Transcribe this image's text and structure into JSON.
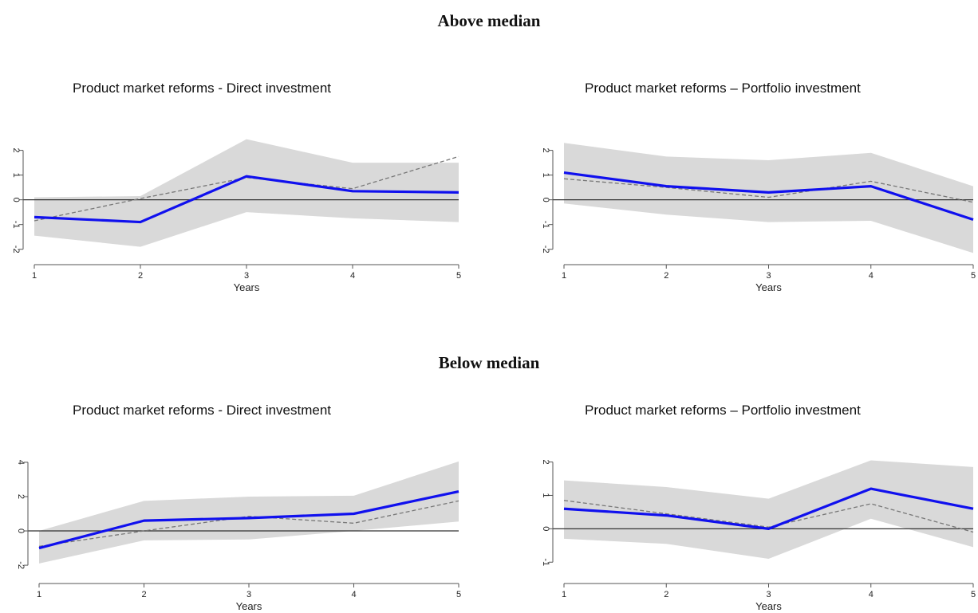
{
  "sections": [
    {
      "title": "Above median"
    },
    {
      "title": "Below median"
    }
  ],
  "colors": {
    "estimate": "#1010ee",
    "band": "#d9d9d9",
    "comparison": "#777777",
    "zero_line": "#333333",
    "axis": "#555555"
  },
  "chart_data": [
    {
      "type": "line",
      "title": "Product market reforms - Direct investment",
      "xlabel": "Years",
      "ylabel": "",
      "x": [
        1,
        2,
        3,
        4,
        5
      ],
      "xlim": [
        1,
        5
      ],
      "ylim": [
        -2.3,
        2.6
      ],
      "yticks": [
        -2,
        -1,
        0,
        1,
        2
      ],
      "grid": false,
      "series": [
        {
          "values": [
            -0.7,
            -0.9,
            0.95,
            0.35,
            0.3
          ],
          "style": "solid"
        },
        {
          "values": [
            -0.85,
            0.05,
            0.9,
            0.45,
            1.75
          ],
          "style": "dashed"
        },
        {
          "values": [
            0.1,
            0.15,
            2.45,
            1.5,
            1.5
          ],
          "style": "band-upper"
        },
        {
          "values": [
            -1.45,
            -1.9,
            -0.5,
            -0.75,
            -0.9
          ],
          "style": "band-lower"
        }
      ]
    },
    {
      "type": "line",
      "title": "Product market reforms – Portfolio investment",
      "xlabel": "Years",
      "ylabel": "",
      "x": [
        1,
        2,
        3,
        4,
        5
      ],
      "xlim": [
        1,
        5
      ],
      "ylim": [
        -2.3,
        2.6
      ],
      "yticks": [
        -2,
        -1,
        0,
        1,
        2
      ],
      "grid": false,
      "series": [
        {
          "values": [
            1.1,
            0.55,
            0.3,
            0.55,
            -0.8
          ],
          "style": "solid"
        },
        {
          "values": [
            0.85,
            0.5,
            0.1,
            0.75,
            -0.1
          ],
          "style": "dashed"
        },
        {
          "values": [
            2.3,
            1.75,
            1.6,
            1.9,
            0.55
          ],
          "style": "band-upper"
        },
        {
          "values": [
            -0.15,
            -0.6,
            -0.9,
            -0.85,
            -2.15
          ],
          "style": "band-lower"
        }
      ]
    },
    {
      "type": "line",
      "title": "Product market reforms - Direct investment",
      "xlabel": "Years",
      "ylabel": "",
      "x": [
        1,
        2,
        3,
        4,
        5
      ],
      "xlim": [
        1,
        5
      ],
      "ylim": [
        -2.6,
        4.6
      ],
      "yticks": [
        -2,
        0,
        2,
        4
      ],
      "grid": false,
      "series": [
        {
          "values": [
            -1.0,
            0.6,
            0.75,
            1.0,
            2.3
          ],
          "style": "solid"
        },
        {
          "values": [
            -0.9,
            0.0,
            0.85,
            0.45,
            1.75
          ],
          "style": "dashed"
        },
        {
          "values": [
            0.0,
            1.75,
            2.0,
            2.05,
            4.05
          ],
          "style": "band-upper"
        },
        {
          "values": [
            -1.9,
            -0.55,
            -0.5,
            0.0,
            0.55
          ],
          "style": "band-lower"
        }
      ]
    },
    {
      "type": "line",
      "title": "Product market reforms – Portfolio investment",
      "xlabel": "Years",
      "ylabel": "",
      "x": [
        1,
        2,
        3,
        4,
        5
      ],
      "xlim": [
        1,
        5
      ],
      "ylim": [
        -1.4,
        2.3
      ],
      "yticks": [
        -1,
        0,
        1,
        2
      ],
      "grid": false,
      "series": [
        {
          "values": [
            0.6,
            0.4,
            0.0,
            1.2,
            0.6
          ],
          "style": "solid"
        },
        {
          "values": [
            0.85,
            0.45,
            0.05,
            0.75,
            -0.1
          ],
          "style": "dashed"
        },
        {
          "values": [
            1.45,
            1.25,
            0.9,
            2.05,
            1.85
          ],
          "style": "band-upper"
        },
        {
          "values": [
            -0.3,
            -0.45,
            -0.9,
            0.3,
            -0.55
          ],
          "style": "band-lower"
        }
      ]
    }
  ]
}
